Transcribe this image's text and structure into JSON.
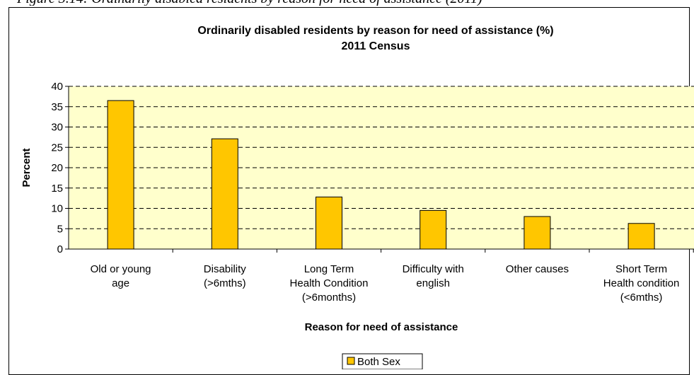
{
  "caption": {
    "text": "Figure 3.14: Ordinarily disabled residents by reason for need of assistance (2011)"
  },
  "chart_data": {
    "type": "bar",
    "title": "Ordinarily disabled residents by reason for need of assistance (%)",
    "subtitle": "2011 Census",
    "xlabel": "Reason for need of assistance",
    "ylabel": "Percent",
    "ylim": [
      0,
      40
    ],
    "yticks": [
      0,
      5,
      10,
      15,
      20,
      25,
      30,
      35,
      40
    ],
    "grid": true,
    "legend_position": "bottom",
    "categories": [
      [
        "Old or young",
        "age"
      ],
      [
        "Disability",
        "(>6mths)"
      ],
      [
        "Long Term",
        "Health Condition",
        "(>6months)"
      ],
      [
        "Difficulty with",
        "english"
      ],
      [
        "Other causes"
      ],
      [
        "Short Term",
        "Health condition",
        "(<6mths)"
      ]
    ],
    "series": [
      {
        "name": "Both Sex",
        "values": [
          36.5,
          27.1,
          12.8,
          9.5,
          8.0,
          6.3
        ]
      }
    ],
    "colors": {
      "bar": "#FFC600",
      "plot_bg": "#FFFFCC",
      "bar_stroke": "#000000"
    }
  }
}
